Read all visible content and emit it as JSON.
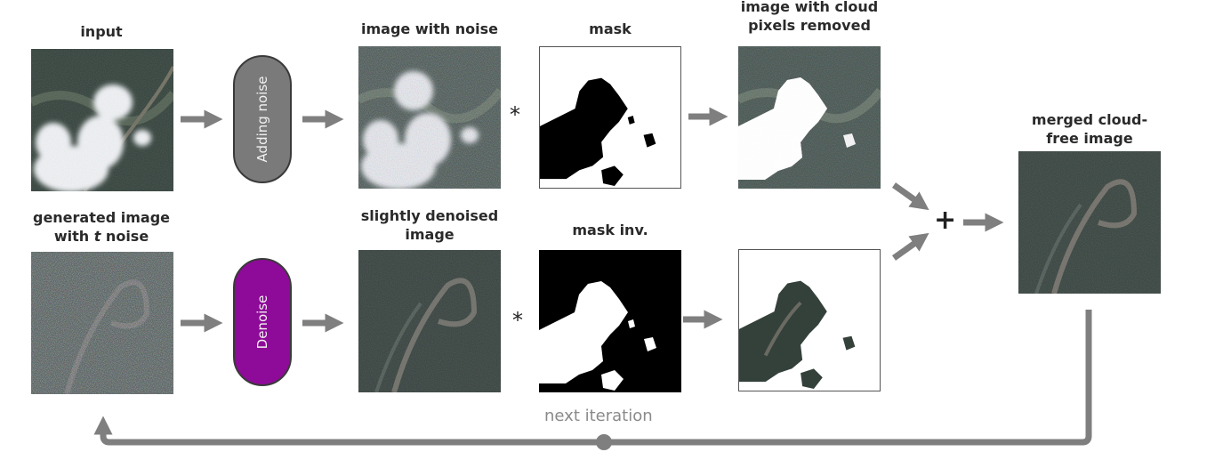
{
  "labels": {
    "input": "input",
    "image_with_noise": "image with noise",
    "mask": "mask",
    "image_cloud_removed_line1": "image with cloud",
    "image_cloud_removed_line2": "pixels removed",
    "merged_line1": "merged cloud-",
    "merged_line2": "free image",
    "generated_line1": "generated image",
    "generated_pre": "with ",
    "generated_t": "t",
    "generated_post": " noise",
    "slightly_line1": "slightly denoised",
    "slightly_line2": "image",
    "mask_inv": "mask inv."
  },
  "process": {
    "adding_noise": "Adding noise",
    "denoise": "Denoise"
  },
  "operators": {
    "multiply": "*",
    "plus": "+"
  },
  "loop_label": "next iteration",
  "colors": {
    "arrow": "#7f7f7f",
    "adding_noise_fill": "#7a7a7a",
    "denoise_fill": "#8e0a98",
    "satellite_dark": "#2d3a33",
    "cloud": "#f4f6f8",
    "mask_black": "#000000"
  }
}
